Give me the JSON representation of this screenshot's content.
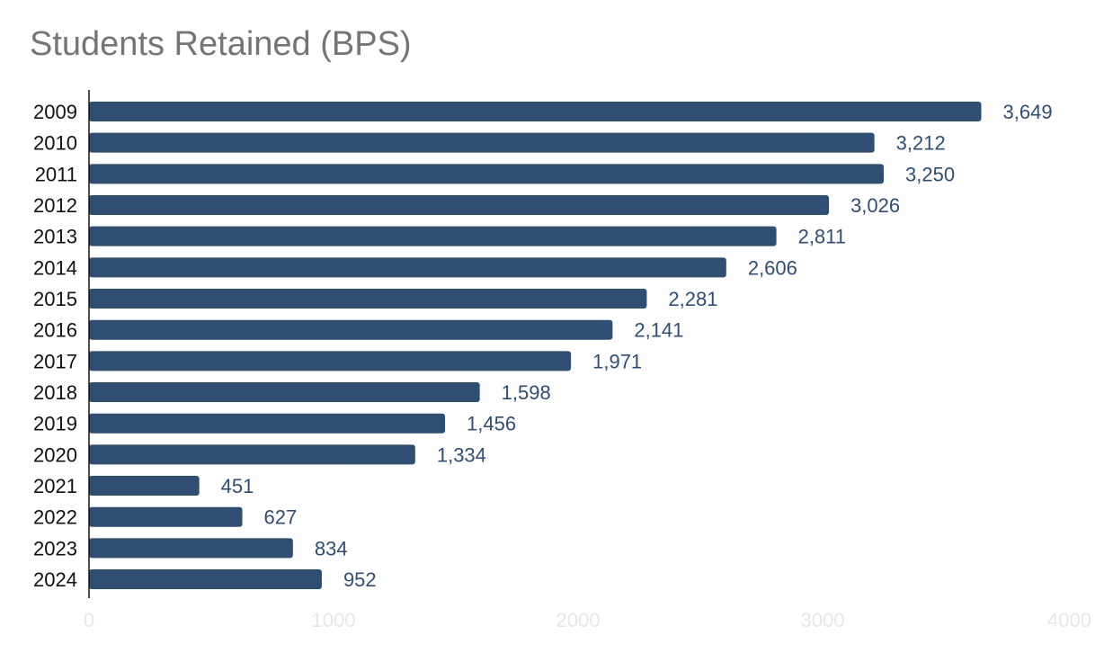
{
  "chart_data": {
    "type": "bar",
    "orientation": "horizontal",
    "title": "Students Retained (BPS)",
    "xlabel": "",
    "ylabel": "",
    "categories": [
      "2009",
      "2010",
      "2011",
      "2012",
      "2013",
      "2014",
      "2015",
      "2016",
      "2017",
      "2018",
      "2019",
      "2020",
      "2021",
      "2022",
      "2023",
      "2024"
    ],
    "values": [
      3649,
      3212,
      3250,
      3026,
      2811,
      2606,
      2281,
      2141,
      1971,
      1598,
      1456,
      1334,
      451,
      627,
      834,
      952
    ],
    "value_labels": [
      "3,649",
      "3,212",
      "3,250",
      "3,026",
      "2,811",
      "2,606",
      "2,281",
      "2,141",
      "1,971",
      "1,598",
      "1,456",
      "1,334",
      "451",
      "627",
      "834",
      "952"
    ],
    "xlim": [
      0,
      4000
    ],
    "xticks": [
      0,
      1000,
      2000,
      3000,
      4000
    ],
    "xtick_labels": [
      "0",
      "1000",
      "2000",
      "3000",
      "4000"
    ],
    "grid": false,
    "legend": "none",
    "colors": {
      "bar": "#304d72",
      "value_label": "#304d72",
      "category_label": "#111111",
      "tick_label": "#e6e6e6",
      "axis": "#111111",
      "title": "#757575"
    }
  }
}
